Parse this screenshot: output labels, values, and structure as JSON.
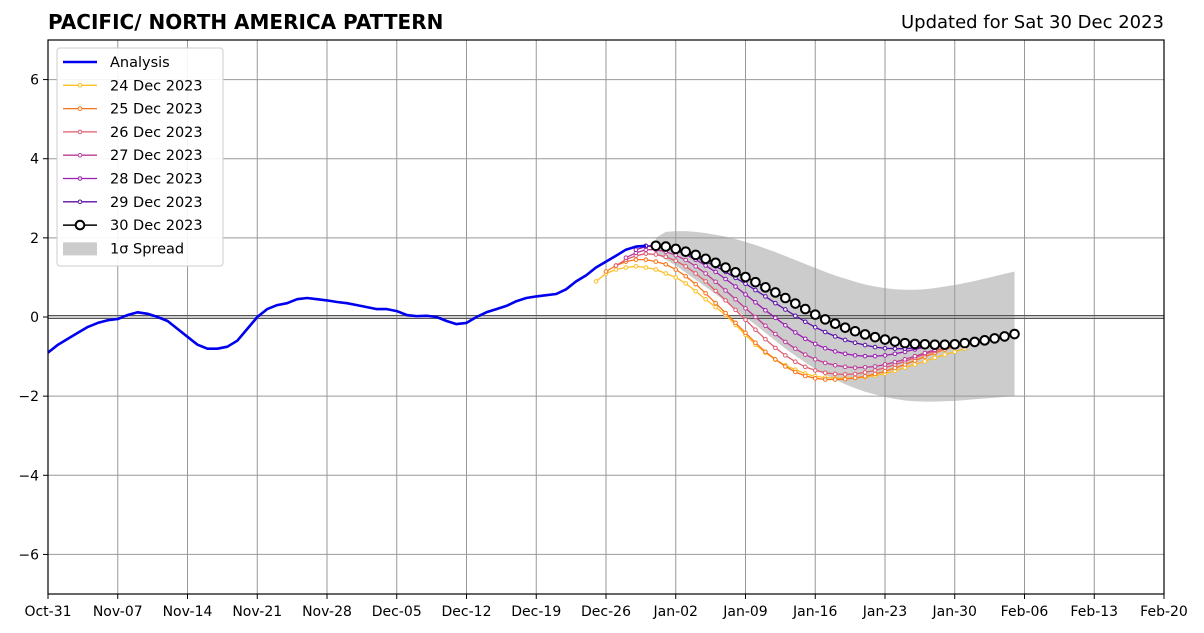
{
  "header": {
    "title": "PACIFIC/ NORTH AMERICA PATTERN",
    "updated": "Updated for Sat 30 Dec 2023"
  },
  "chart_data": {
    "type": "line",
    "title": "PACIFIC/ NORTH AMERICA PATTERN",
    "xlabel": "",
    "ylabel": "",
    "x_unit": "days since Oct-31",
    "xlim": [
      0,
      112
    ],
    "ylim": [
      -7,
      7
    ],
    "x_ticks": [
      {
        "x": 0,
        "label": "Oct-31"
      },
      {
        "x": 7,
        "label": "Nov-07"
      },
      {
        "x": 14,
        "label": "Nov-14"
      },
      {
        "x": 21,
        "label": "Nov-21"
      },
      {
        "x": 28,
        "label": "Nov-28"
      },
      {
        "x": 35,
        "label": "Dec-05"
      },
      {
        "x": 42,
        "label": "Dec-12"
      },
      {
        "x": 49,
        "label": "Dec-19"
      },
      {
        "x": 56,
        "label": "Dec-26"
      },
      {
        "x": 63,
        "label": "Jan-02"
      },
      {
        "x": 70,
        "label": "Jan-09"
      },
      {
        "x": 77,
        "label": "Jan-16"
      },
      {
        "x": 84,
        "label": "Jan-23"
      },
      {
        "x": 91,
        "label": "Jan-30"
      },
      {
        "x": 98,
        "label": "Feb-06"
      },
      {
        "x": 105,
        "label": "Feb-13"
      },
      {
        "x": 112,
        "label": "Feb-20"
      }
    ],
    "y_ticks": [
      {
        "y": 6,
        "label": "6"
      },
      {
        "y": 4,
        "label": "4"
      },
      {
        "y": 2,
        "label": "2"
      },
      {
        "y": 0,
        "label": "0"
      },
      {
        "y": -2,
        "label": "−2"
      },
      {
        "y": -4,
        "label": "−4"
      },
      {
        "y": -6,
        "label": "−6"
      }
    ],
    "grid": true,
    "legend_position": "top-left",
    "analysis": {
      "name": "Analysis",
      "color": "#0000ee",
      "x": [
        0,
        1,
        2,
        3,
        4,
        5,
        6,
        7,
        8,
        9,
        10,
        11,
        12,
        13,
        14,
        15,
        16,
        17,
        18,
        19,
        20,
        21,
        22,
        23,
        24,
        25,
        26,
        27,
        28,
        29,
        30,
        31,
        32,
        33,
        34,
        35,
        36,
        37,
        38,
        39,
        40,
        41,
        42,
        43,
        44,
        45,
        46,
        47,
        48,
        49,
        50,
        51,
        52,
        53,
        54,
        55,
        56,
        57,
        58,
        59,
        60
      ],
      "y": [
        -0.9,
        -0.7,
        -0.55,
        -0.4,
        -0.25,
        -0.15,
        -0.08,
        -0.05,
        0.05,
        0.12,
        0.08,
        0.0,
        -0.1,
        -0.3,
        -0.5,
        -0.7,
        -0.8,
        -0.8,
        -0.75,
        -0.6,
        -0.3,
        0.0,
        0.2,
        0.3,
        0.35,
        0.45,
        0.48,
        0.45,
        0.42,
        0.38,
        0.35,
        0.3,
        0.25,
        0.2,
        0.2,
        0.15,
        0.05,
        0.02,
        0.03,
        0.0,
        -0.1,
        -0.18,
        -0.15,
        0.0,
        0.12,
        0.2,
        0.28,
        0.4,
        0.48,
        0.52,
        0.55,
        0.58,
        0.7,
        0.9,
        1.05,
        1.25,
        1.4,
        1.55,
        1.7,
        1.78,
        1.8
      ]
    },
    "forecasts": [
      {
        "name": "24 Dec 2023",
        "color": "#fbbf24",
        "start": 55,
        "y": [
          0.9,
          1.1,
          1.2,
          1.25,
          1.28,
          1.25,
          1.2,
          1.1,
          1.0,
          0.85,
          0.65,
          0.45,
          0.25,
          0.05,
          -0.2,
          -0.45,
          -0.7,
          -0.9,
          -1.08,
          -1.22,
          -1.33,
          -1.43,
          -1.5,
          -1.53,
          -1.55,
          -1.55,
          -1.54,
          -1.52,
          -1.48,
          -1.43,
          -1.36,
          -1.28,
          -1.2,
          -1.12,
          -1.03,
          -0.95,
          -0.88,
          -0.8
        ]
      },
      {
        "name": "25 Dec 2023",
        "color": "#f97316",
        "start": 56,
        "y": [
          1.15,
          1.3,
          1.4,
          1.45,
          1.45,
          1.4,
          1.33,
          1.2,
          1.03,
          0.83,
          0.6,
          0.35,
          0.1,
          -0.15,
          -0.4,
          -0.65,
          -0.88,
          -1.07,
          -1.25,
          -1.39,
          -1.49,
          -1.55,
          -1.58,
          -1.58,
          -1.57,
          -1.54,
          -1.5,
          -1.44,
          -1.37,
          -1.29,
          -1.2,
          -1.1,
          -1.0,
          -0.91,
          -0.82,
          -0.74
        ]
      },
      {
        "name": "26 Dec 2023",
        "color": "#e05a6e",
        "start": 57,
        "y": [
          1.3,
          1.45,
          1.55,
          1.6,
          1.58,
          1.52,
          1.42,
          1.28,
          1.1,
          0.9,
          0.66,
          0.42,
          0.18,
          -0.07,
          -0.32,
          -0.56,
          -0.78,
          -0.97,
          -1.13,
          -1.26,
          -1.35,
          -1.41,
          -1.44,
          -1.45,
          -1.44,
          -1.4,
          -1.35,
          -1.28,
          -1.2,
          -1.12,
          -1.03,
          -0.94,
          -0.86,
          -0.78
        ]
      },
      {
        "name": "27 Dec 2023",
        "color": "#be3a9a",
        "start": 58,
        "y": [
          1.5,
          1.62,
          1.7,
          1.7,
          1.65,
          1.56,
          1.44,
          1.28,
          1.1,
          0.89,
          0.67,
          0.45,
          0.22,
          0.0,
          -0.22,
          -0.43,
          -0.63,
          -0.8,
          -0.95,
          -1.07,
          -1.16,
          -1.22,
          -1.26,
          -1.28,
          -1.27,
          -1.25,
          -1.2,
          -1.14,
          -1.07,
          -0.99,
          -0.91,
          -0.83
        ]
      },
      {
        "name": "28 Dec 2023",
        "color": "#9b1cb3",
        "start": 59,
        "y": [
          1.7,
          1.78,
          1.8,
          1.76,
          1.68,
          1.58,
          1.45,
          1.3,
          1.14,
          0.96,
          0.77,
          0.57,
          0.37,
          0.17,
          -0.02,
          -0.21,
          -0.39,
          -0.55,
          -0.68,
          -0.79,
          -0.87,
          -0.93,
          -0.97,
          -0.99,
          -0.99,
          -0.97,
          -0.93,
          -0.88,
          -0.82,
          -0.76
        ]
      },
      {
        "name": "29 Dec 2023",
        "color": "#5b0fa8",
        "start": 60,
        "y": [
          1.8,
          1.8,
          1.76,
          1.7,
          1.62,
          1.52,
          1.4,
          1.28,
          1.14,
          0.99,
          0.84,
          0.68,
          0.52,
          0.35,
          0.19,
          0.03,
          -0.12,
          -0.26,
          -0.38,
          -0.49,
          -0.58,
          -0.65,
          -0.71,
          -0.76,
          -0.79,
          -0.8,
          -0.8,
          -0.78,
          -0.75,
          -0.71
        ]
      },
      {
        "name": "30 Dec 2023",
        "color": "#000000",
        "start": 61,
        "y": [
          1.8,
          1.78,
          1.72,
          1.65,
          1.57,
          1.47,
          1.37,
          1.25,
          1.13,
          1.01,
          0.88,
          0.75,
          0.62,
          0.48,
          0.34,
          0.2,
          0.06,
          -0.06,
          -0.17,
          -0.27,
          -0.36,
          -0.44,
          -0.51,
          -0.57,
          -0.62,
          -0.66,
          -0.68,
          -0.69,
          -0.7,
          -0.7,
          -0.69,
          -0.66,
          -0.63,
          -0.59,
          -0.54,
          -0.49,
          -0.43
        ]
      }
    ],
    "spread": {
      "name": "1σ Spread",
      "color": "#cccccc",
      "start": 61,
      "upper": [
        2.0,
        2.15,
        2.17,
        2.17,
        2.15,
        2.12,
        2.08,
        2.03,
        1.97,
        1.9,
        1.82,
        1.73,
        1.64,
        1.54,
        1.44,
        1.34,
        1.24,
        1.14,
        1.05,
        0.97,
        0.89,
        0.82,
        0.77,
        0.73,
        0.7,
        0.69,
        0.69,
        0.7,
        0.73,
        0.77,
        0.81,
        0.86,
        0.91,
        0.97,
        1.03,
        1.09,
        1.15
      ],
      "lower": [
        1.6,
        1.45,
        1.3,
        1.12,
        0.94,
        0.76,
        0.58,
        0.39,
        0.2,
        0.0,
        -0.2,
        -0.4,
        -0.6,
        -0.8,
        -0.98,
        -1.15,
        -1.31,
        -1.46,
        -1.58,
        -1.7,
        -1.8,
        -1.89,
        -1.96,
        -2.02,
        -2.07,
        -2.11,
        -2.13,
        -2.14,
        -2.14,
        -2.13,
        -2.12,
        -2.1,
        -2.08,
        -2.06,
        -2.04,
        -2.02,
        -2.0
      ]
    }
  }
}
